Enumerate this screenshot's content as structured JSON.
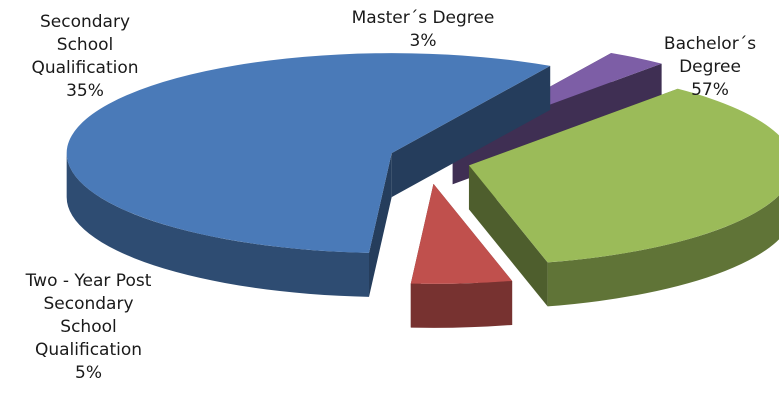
{
  "chart_data": {
    "type": "pie",
    "style": "3d-exploded",
    "title": "",
    "slices": [
      {
        "label_lines": [
          "Bachelor´s",
          "Degree"
        ],
        "value_label": "57%",
        "value": 57,
        "color": "#4a7ab8"
      },
      {
        "label_lines": [
          "Master´s Degree"
        ],
        "value_label": "3%",
        "value": 3,
        "color": "#7d5ea6"
      },
      {
        "label_lines": [
          "Secondary",
          "School",
          "Qualification"
        ],
        "value_label": "35%",
        "value": 35,
        "color": "#9bbb59"
      },
      {
        "label_lines": [
          "Two - Year Post",
          "Secondary",
          "School",
          "Qualification"
        ],
        "value_label": "5%",
        "value": 5,
        "color": "#c0504d"
      }
    ],
    "legend": "none"
  }
}
